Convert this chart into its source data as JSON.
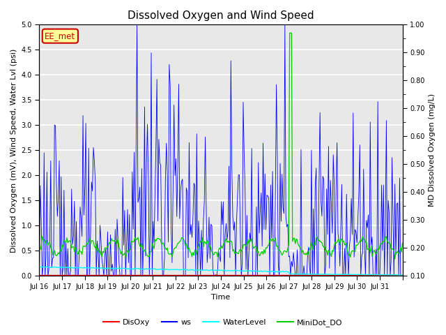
{
  "title": "Dissolved Oxygen and Wind Speed",
  "ylabel_left": "Dissolved Oxygen (mV), Wind Speed, Water Lvl (psi)",
  "ylabel_right": "MD Dissolved Oxygen (mg/L)",
  "xlabel": "Time",
  "ylim_left": [
    0.0,
    5.0
  ],
  "ylim_right": [
    0.1,
    1.0
  ],
  "xtick_labels": [
    "Jul 16",
    "Jul 17",
    "Jul 18",
    "Jul 19",
    "Jul 20",
    "Jul 21",
    "Jul 22",
    "Jul 23",
    "Jul 24",
    "Jul 25",
    "Jul 26",
    "Jul 27",
    "Jul 28",
    "Jul 29",
    "Jul 30",
    "Jul 31"
  ],
  "legend_labels": [
    "DisOxy",
    "ws",
    "WaterLevel",
    "MiniDot_DO"
  ],
  "legend_colors": [
    "#ff0000",
    "#0000ff",
    "#00ffff",
    "#00cc00"
  ],
  "annotation_text": "EE_met",
  "annotation_color": "#cc0000",
  "annotation_bg": "#ffff99",
  "background_color": "#e8e8e8",
  "grid_color": "#ffffff",
  "title_fontsize": 11,
  "label_fontsize": 8,
  "tick_fontsize": 7
}
